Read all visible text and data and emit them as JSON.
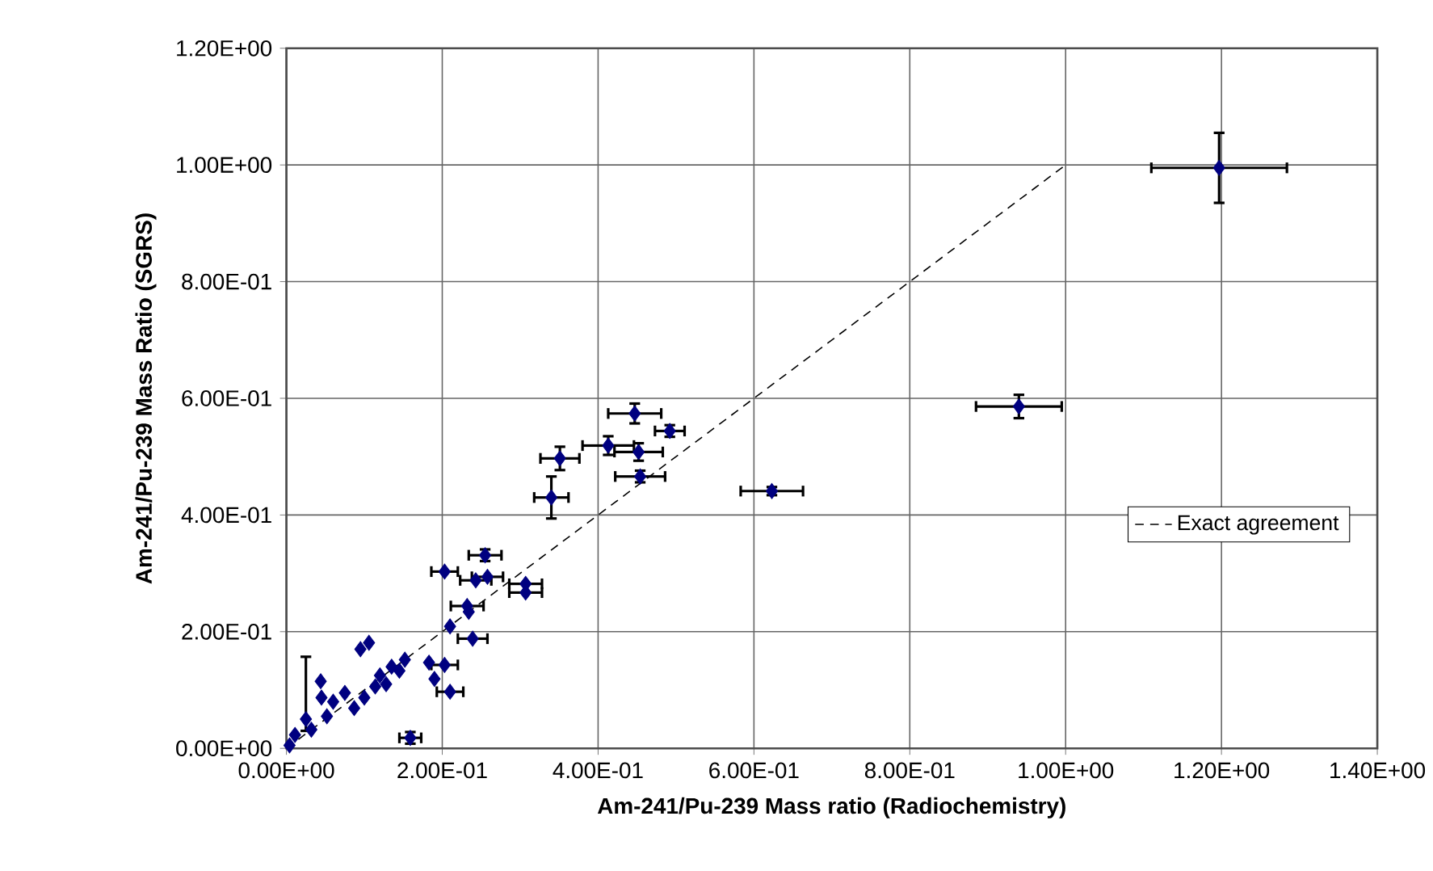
{
  "chart_data": {
    "type": "scatter",
    "xlabel": "Am-241/Pu-239 Mass ratio (Radiochemistry)",
    "ylabel": "Am-241/Pu-239 Mass Ratio (SGRS)",
    "xlim": [
      0,
      1.4
    ],
    "xticks": [
      {
        "value": 0,
        "label": "0.00E+00"
      },
      {
        "value": 0.2,
        "label": "2.00E-01"
      },
      {
        "value": 0.4,
        "label": "4.00E-01"
      },
      {
        "value": 0.6,
        "label": "6.00E-01"
      },
      {
        "value": 0.8,
        "label": "8.00E-01"
      },
      {
        "value": 1.0,
        "label": "1.00E+00"
      },
      {
        "value": 1.2,
        "label": "1.20E+00"
      },
      {
        "value": 1.4,
        "label": "1.40E+00"
      }
    ],
    "ylim": [
      0,
      1.2
    ],
    "yticks": [
      {
        "value": 0,
        "label": "0.00E+00"
      },
      {
        "value": 0.2,
        "label": "2.00E-01"
      },
      {
        "value": 0.4,
        "label": "4.00E-01"
      },
      {
        "value": 0.6,
        "label": "6.00E-01"
      },
      {
        "value": 0.8,
        "label": "8.00E-01"
      },
      {
        "value": 1.0,
        "label": "1.00E+00"
      },
      {
        "value": 1.2,
        "label": "1.20E+00"
      }
    ],
    "grid": true,
    "legend": "right",
    "series": [
      {
        "color": "#000080",
        "marker": "diamond",
        "x": [
          1.197,
          0.94,
          0.447,
          0.492,
          0.413,
          0.452,
          0.351,
          0.454,
          0.34,
          0.623,
          0.255,
          0.203,
          0.243,
          0.258,
          0.307,
          0.307,
          0.232,
          0.234,
          0.21,
          0.239,
          0.106,
          0.095,
          0.152,
          0.183,
          0.203,
          0.145,
          0.19,
          0.21,
          0.114,
          0.128,
          0.1,
          0.087,
          0.159,
          0.004,
          0.025,
          0.045,
          0.044,
          0.06,
          0.075,
          0.052,
          0.032,
          0.011,
          0.12,
          0.135
        ],
        "values": [
          0.995,
          0.586,
          0.574,
          0.544,
          0.519,
          0.508,
          0.497,
          0.466,
          0.43,
          0.441,
          0.331,
          0.303,
          0.288,
          0.294,
          0.282,
          0.267,
          0.244,
          0.234,
          0.209,
          0.188,
          0.181,
          0.17,
          0.152,
          0.147,
          0.143,
          0.133,
          0.119,
          0.097,
          0.106,
          0.11,
          0.087,
          0.069,
          0.018,
          0.005,
          0.05,
          0.087,
          0.115,
          0.08,
          0.095,
          0.055,
          0.032,
          0.023,
          0.125,
          0.14
        ],
        "xerrors": [
          0.087,
          0.055,
          0.034,
          0.019,
          0.033,
          0.031,
          0.025,
          0.032,
          0.022,
          0.04,
          0.021,
          0.017,
          0.02,
          0.02,
          0.021,
          0.021,
          0.021,
          null,
          null,
          0.019,
          null,
          null,
          null,
          null,
          0.017,
          null,
          null,
          0.017,
          null,
          null,
          null,
          null,
          0.014,
          null,
          null,
          null,
          null,
          null,
          null,
          null,
          null,
          null,
          null,
          null
        ],
        "errors": [
          0.06,
          0.02,
          0.017,
          0.01,
          0.016,
          0.015,
          0.02,
          0.01,
          0.036,
          0.007,
          0.01,
          null,
          null,
          null,
          null,
          null,
          null,
          null,
          null,
          null,
          null,
          null,
          null,
          null,
          null,
          null,
          null,
          null,
          null,
          null,
          null,
          null,
          0.01,
          null,
          [
            0.03,
            0.157
          ],
          null,
          null,
          null,
          null,
          null,
          null,
          null,
          null,
          null
        ]
      },
      {
        "type": "line",
        "name": "Exact agreement",
        "color": "#000000",
        "line_style": "dashed",
        "marker": "none",
        "x": [
          0,
          1
        ],
        "values": [
          0,
          1
        ]
      }
    ]
  }
}
